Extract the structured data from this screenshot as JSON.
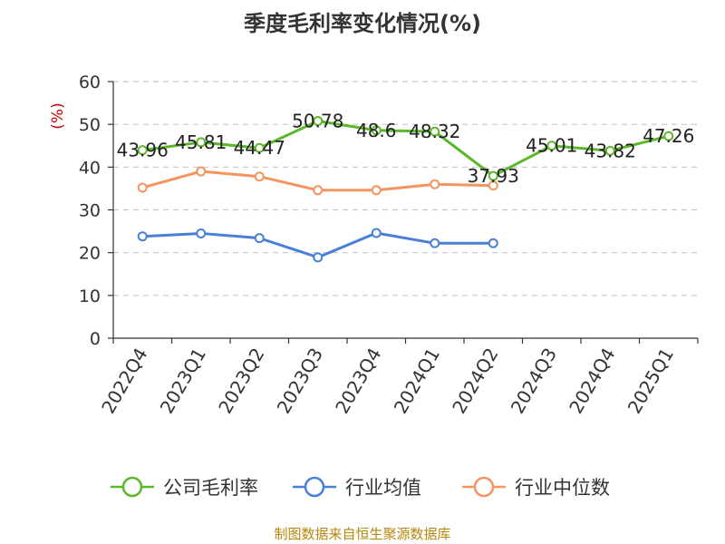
{
  "chart_data": {
    "type": "line",
    "title": "季度毛利率变化情况(%)",
    "unit_label": "(%)",
    "categories": [
      "2022Q4",
      "2023Q1",
      "2023Q2",
      "2023Q3",
      "2023Q4",
      "2024Q1",
      "2024Q2",
      "2024Q3",
      "2024Q4",
      "2025Q1"
    ],
    "ylim": [
      0,
      60
    ],
    "yticks": [
      0,
      10,
      20,
      30,
      40,
      50,
      60
    ],
    "grid": true,
    "legend_position": "bottom",
    "series": [
      {
        "name": "公司毛利率",
        "color": "#5cb82a",
        "values": [
          43.96,
          45.81,
          44.47,
          50.78,
          48.6,
          48.32,
          37.93,
          45.01,
          43.82,
          47.26
        ],
        "labels": [
          "43.96",
          "45.81",
          "44.47",
          "50.78",
          "48.6",
          "48.32",
          "37.93",
          "45.01",
          "43.82",
          "47.26"
        ],
        "show_labels": true
      },
      {
        "name": "行业均值",
        "color": "#4a7fd8",
        "values": [
          23.8,
          24.5,
          23.4,
          18.9,
          24.6,
          22.2,
          22.2,
          null,
          null,
          null
        ],
        "show_labels": false
      },
      {
        "name": "行业中位数",
        "color": "#f59461",
        "values": [
          35.2,
          39.0,
          37.8,
          34.6,
          34.6,
          36.0,
          35.7,
          null,
          null,
          null
        ],
        "show_labels": false
      }
    ]
  },
  "source": {
    "text": "制图数据来自恒生聚源数据库",
    "color": "#b8860b"
  }
}
